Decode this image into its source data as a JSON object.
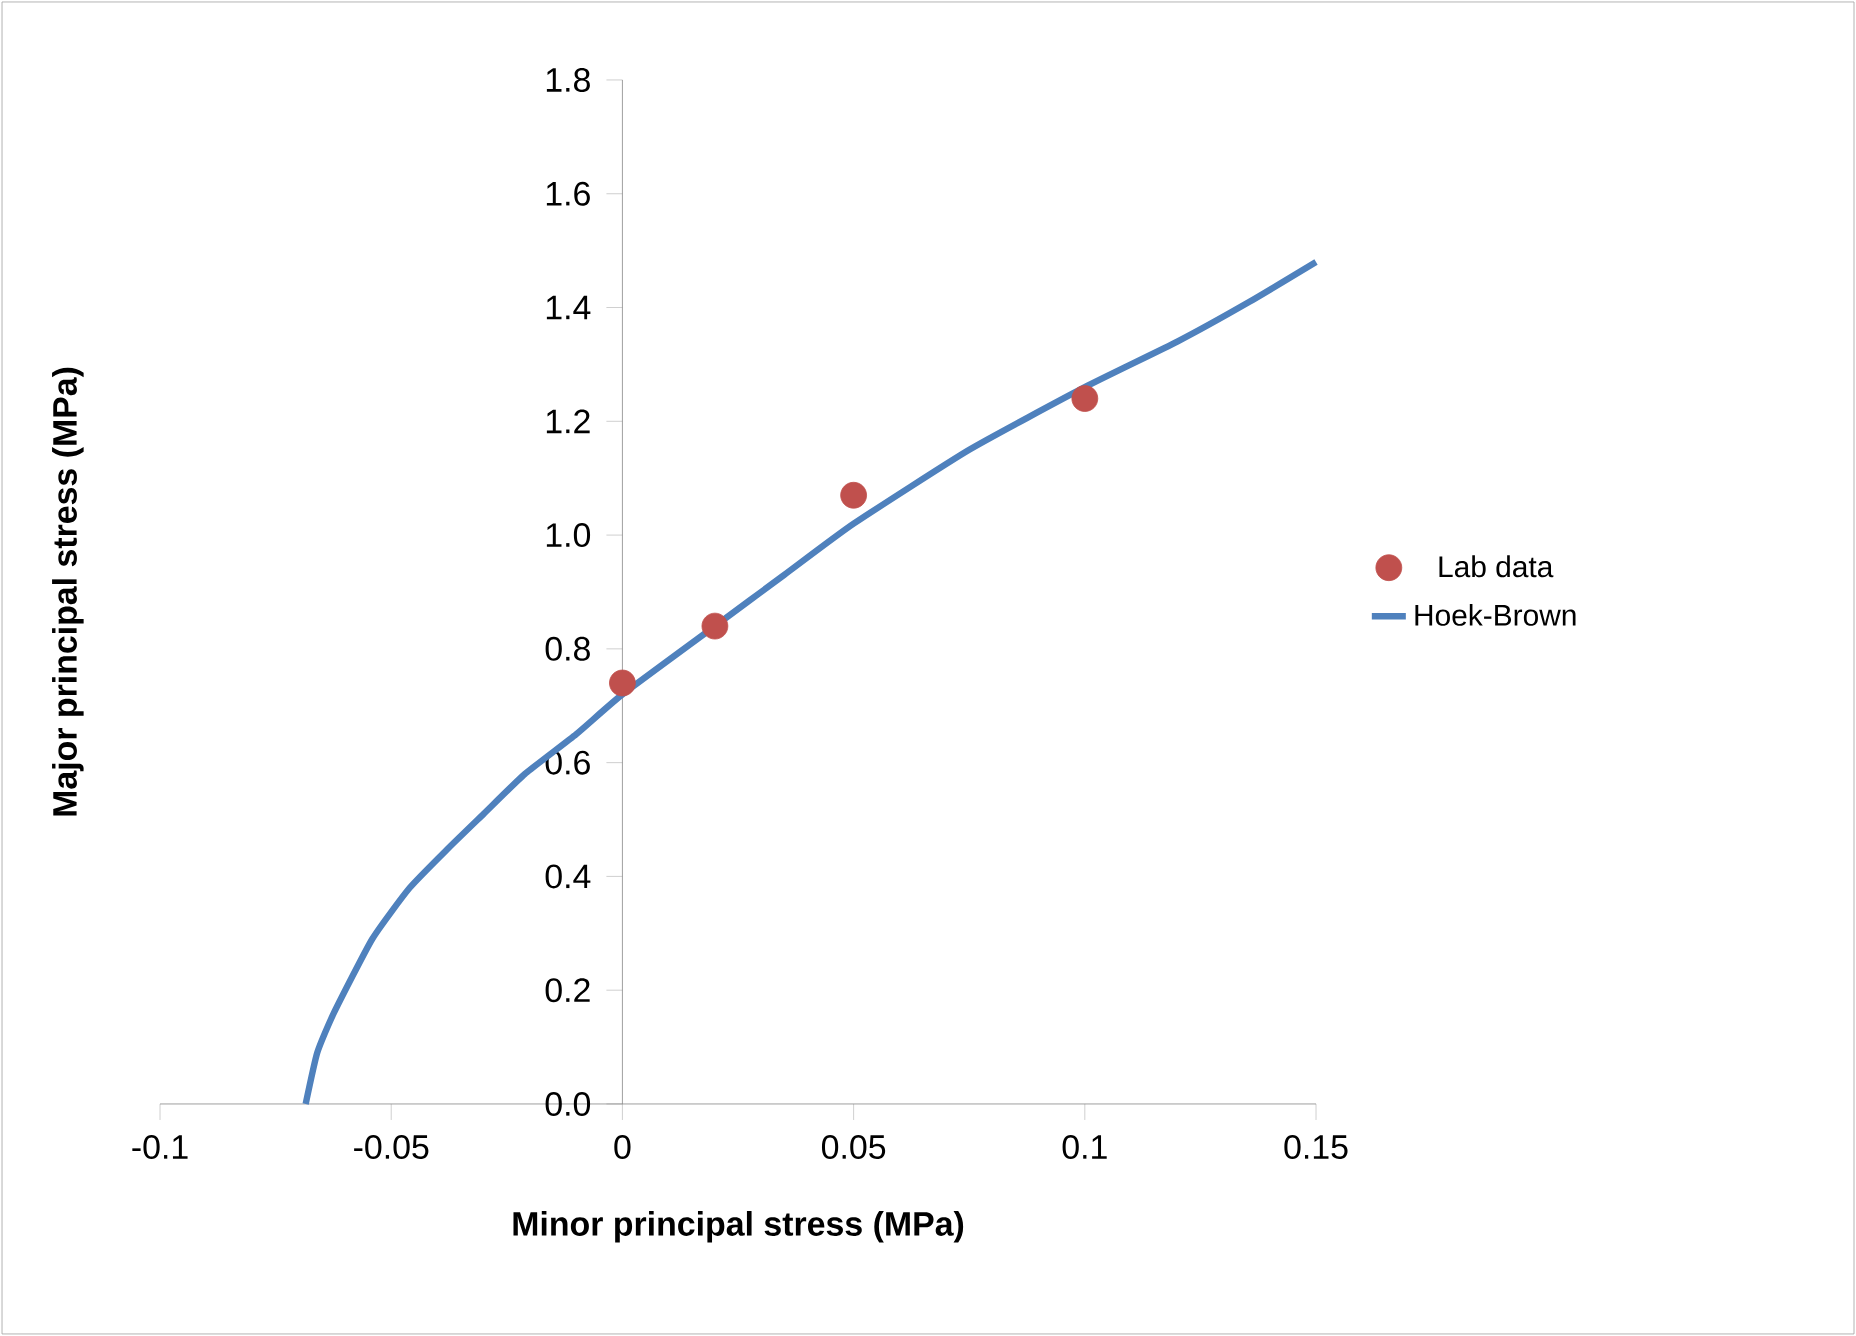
{
  "chart_data": {
    "type": "scatter",
    "xlabel": "Minor principal stress (MPa)",
    "ylabel": "Major principal stress (MPa)",
    "xlim": [
      -0.1,
      0.15
    ],
    "ylim": [
      0,
      1.8
    ],
    "xticks": [
      -0.1,
      -0.05,
      0,
      0.05,
      0.1,
      0.15
    ],
    "yticks": [
      {
        "value": 0,
        "label": "0.0"
      },
      {
        "value": 0.2,
        "label": "0.2"
      },
      {
        "value": 0.4,
        "label": "0.4"
      },
      {
        "value": 0.6,
        "label": "0.6"
      },
      {
        "value": 0.8,
        "label": "0.8"
      },
      {
        "value": 1.0,
        "label": "1.0"
      },
      {
        "value": 1.2,
        "label": "1.2"
      },
      {
        "value": 1.4,
        "label": "1.4"
      },
      {
        "value": 1.6,
        "label": "1.6"
      },
      {
        "value": 1.8,
        "label": "1.8"
      }
    ],
    "grid": false,
    "legend": "right",
    "series": [
      {
        "name": "Lab data",
        "marker": "circle",
        "color": "#c0504d",
        "x": [
          0,
          0.02,
          0.05,
          0.1
        ],
        "values": [
          0.74,
          0.84,
          1.07,
          1.24
        ]
      },
      {
        "name": "Hoek-Brown",
        "type": "line",
        "marker": "none",
        "line_style": "solid",
        "color": "#4f81bd",
        "x": [
          -0.0685,
          -0.066,
          -0.0624,
          -0.0541,
          -0.046,
          -0.0376,
          -0.03,
          -0.0211,
          -0.01,
          0,
          0.02,
          0.035,
          0.05,
          0.075,
          0.1,
          0.12,
          0.1356,
          0.15
        ],
        "values": [
          0,
          0.09,
          0.16,
          0.29,
          0.38,
          0.45,
          0.51,
          0.58,
          0.65,
          0.72,
          0.84,
          0.93,
          1.02,
          1.15,
          1.26,
          1.34,
          1.41,
          1.48
        ]
      }
    ]
  }
}
